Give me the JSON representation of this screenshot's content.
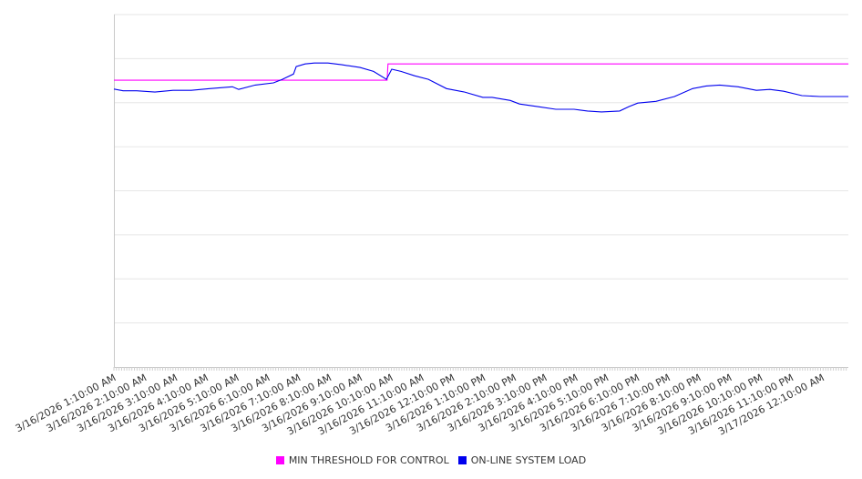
{
  "chart_data": {
    "type": "line",
    "title": "",
    "xlabel": "",
    "ylabel": "",
    "x_unit": "hours since 3/16/2026 1:10:00 AM",
    "xlim": [
      0,
      23.85
    ],
    "ylim": [
      0,
      8
    ],
    "y_gridlines": [
      0,
      1,
      2,
      3,
      4,
      5,
      6,
      7,
      8
    ],
    "y_tick_labels_shown": false,
    "grid": true,
    "legend_position": "bottom",
    "x_tick_labels": [
      "3/16/2026 1:10:00 AM",
      "3/16/2026 2:10:00 AM",
      "3/16/2026 3:10:00 AM",
      "3/16/2026 4:10:00 AM",
      "3/16/2026 5:10:00 AM",
      "3/16/2026 6:10:00 AM",
      "3/16/2026 7:10:00 AM",
      "3/16/2026 8:10:00 AM",
      "3/16/2026 9:10:00 AM",
      "3/16/2026 10:10:00 AM",
      "3/16/2026 11:10:00 AM",
      "3/16/2026 12:10:00 PM",
      "3/16/2026 1:10:00 PM",
      "3/16/2026 2:10:00 PM",
      "3/16/2026 3:10:00 PM",
      "3/16/2026 4:10:00 PM",
      "3/16/2026 5:10:00 PM",
      "3/16/2026 6:10:00 PM",
      "3/16/2026 7:10:00 PM",
      "3/16/2026 8:10:00 PM",
      "3/16/2026 9:10:00 PM",
      "3/16/2026 10:10:00 PM",
      "3/16/2026 11:10:00 PM",
      "3/17/2026 12:10:00 AM"
    ],
    "series": [
      {
        "name": "MIN THRESHOLD FOR CONTROL",
        "color": "#ff00ff",
        "x": [
          0,
          8.87,
          8.9,
          23.85
        ],
        "y": [
          6.51,
          6.51,
          6.88,
          6.88
        ]
      },
      {
        "name": "ON-LINE SYSTEM LOAD",
        "color": "#0000ee",
        "x": [
          0,
          0.3,
          0.74,
          1.33,
          1.92,
          2.51,
          3.11,
          3.85,
          4.05,
          4.59,
          5.18,
          5.47,
          5.83,
          5.92,
          6.21,
          6.51,
          6.95,
          7.4,
          7.99,
          8.43,
          8.85,
          9.02,
          9.32,
          9.76,
          10.21,
          10.8,
          11.39,
          11.98,
          12.28,
          12.87,
          13.17,
          13.76,
          14.35,
          14.94,
          15.38,
          15.83,
          16.42,
          16.72,
          17.01,
          17.6,
          18.2,
          18.79,
          19.23,
          19.67,
          20.27,
          20.86,
          21.3,
          21.75,
          22.34,
          22.93,
          23.85
        ],
        "y": [
          6.31,
          6.27,
          6.27,
          6.24,
          6.28,
          6.28,
          6.32,
          6.36,
          6.3,
          6.4,
          6.45,
          6.53,
          6.65,
          6.82,
          6.88,
          6.9,
          6.9,
          6.86,
          6.8,
          6.71,
          6.53,
          6.76,
          6.71,
          6.61,
          6.53,
          6.32,
          6.24,
          6.12,
          6.12,
          6.05,
          5.97,
          5.91,
          5.85,
          5.85,
          5.81,
          5.79,
          5.81,
          5.91,
          5.99,
          6.03,
          6.14,
          6.32,
          6.38,
          6.4,
          6.36,
          6.28,
          6.3,
          6.26,
          6.16,
          6.14,
          6.14
        ]
      }
    ]
  }
}
